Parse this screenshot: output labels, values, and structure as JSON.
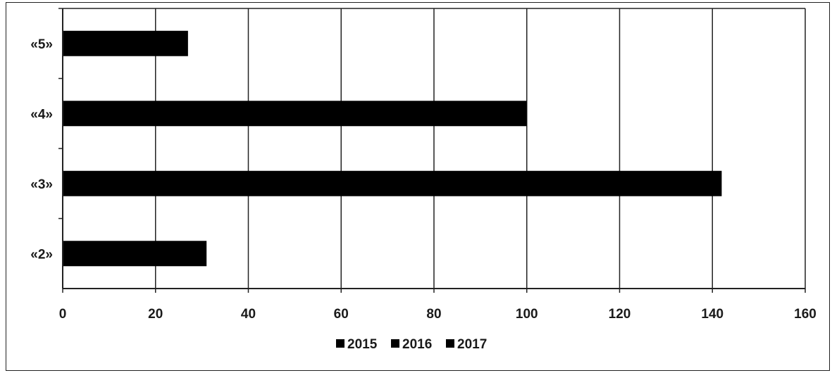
{
  "chart_data": {
    "type": "bar",
    "orientation": "horizontal",
    "categories": [
      "«2»",
      "«3»",
      "«4»",
      "«5»"
    ],
    "series": [
      {
        "name": "2015",
        "values": [
          31,
          142,
          100,
          27
        ],
        "color": "#000000"
      },
      {
        "name": "2016",
        "values": [
          0,
          0,
          0,
          0
        ],
        "color": "#000000"
      },
      {
        "name": "2017",
        "values": [
          0,
          0,
          0,
          0
        ],
        "color": "#000000"
      }
    ],
    "xlim": [
      0,
      160
    ],
    "xticks": [
      0,
      20,
      40,
      60,
      80,
      100,
      120,
      140,
      160
    ],
    "grid": true,
    "legend_position": "bottom",
    "title": "",
    "xlabel": "",
    "ylabel": ""
  }
}
